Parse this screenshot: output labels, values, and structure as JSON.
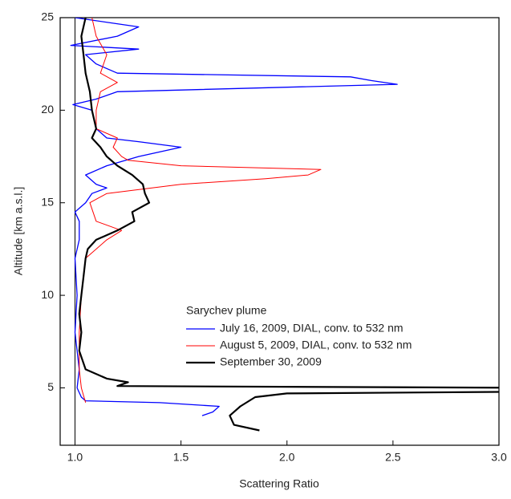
{
  "chart_data": {
    "type": "line",
    "xlabel": "Scattering Ratio",
    "ylabel": "Altitude [km a.s.l.]",
    "xlim": [
      0.93,
      3.0
    ],
    "ylim": [
      1.9,
      25
    ],
    "xticks": [
      {
        "value": 1,
        "label": "1.0"
      },
      1.5,
      {
        "value": 2,
        "label": "2.0"
      },
      2.5,
      {
        "value": 3,
        "label": "3.0"
      }
    ],
    "yticks": [
      5,
      10,
      15,
      20,
      25
    ],
    "vline": 1,
    "legend_title": "Sarychev plume",
    "legend": "lower right",
    "series": [
      {
        "name": "July 16, 2009, DIAL, conv. to 532 nm",
        "color": "#0000ff",
        "linewidth": 1.3,
        "y": [
          3.5,
          3.7,
          4.0,
          4.2,
          4.3,
          4.5,
          5,
          6,
          8,
          10,
          12,
          13,
          14,
          14.5,
          15,
          15.5,
          15.8,
          16,
          16.5,
          17,
          17.5,
          18,
          18.3,
          18.5,
          19,
          20,
          20.3,
          20.6,
          21,
          21.4,
          21.6,
          21.8,
          22,
          22.5,
          23,
          23.3,
          23.5,
          24,
          24.5,
          25
        ],
        "x": [
          1.6,
          1.65,
          1.68,
          1.4,
          1.05,
          1.03,
          1.01,
          1.02,
          1.0,
          1.01,
          1.0,
          1.02,
          1.02,
          1.0,
          1.05,
          1.08,
          1.15,
          1.1,
          1.05,
          1.15,
          1.3,
          1.5,
          1.3,
          1.15,
          1.1,
          1.08,
          0.99,
          1.1,
          1.2,
          2.52,
          2.4,
          2.3,
          1.2,
          1.1,
          1.05,
          1.3,
          0.98,
          1.2,
          1.3,
          1.0
        ]
      },
      {
        "name": "August 5, 2009, DIAL, conv. to 532 nm",
        "color": "#ff0000",
        "linewidth": 1,
        "y": [
          4.2,
          5,
          6,
          8,
          10,
          12,
          13,
          13.5,
          14,
          15,
          15.5,
          16,
          16.3,
          16.5,
          16.8,
          17,
          17.3,
          17.5,
          18,
          18.5,
          19,
          20,
          21,
          21.5,
          22,
          23,
          24,
          25
        ],
        "x": [
          1.05,
          1.03,
          1.02,
          1.02,
          1.03,
          1.05,
          1.15,
          1.22,
          1.1,
          1.07,
          1.15,
          1.5,
          1.9,
          2.1,
          2.16,
          1.5,
          1.25,
          1.22,
          1.18,
          1.2,
          1.1,
          1.1,
          1.12,
          1.2,
          1.12,
          1.15,
          1.1,
          1.08
        ]
      },
      {
        "name": "September 30, 2009",
        "color": "#000000",
        "linewidth": 2.2,
        "y": [
          2.7,
          3.0,
          3.5,
          4.0,
          4.5,
          4.7,
          4.8,
          5.0,
          5.1,
          5.3,
          5.5,
          6,
          7,
          8,
          9,
          10,
          11,
          12,
          12.5,
          13,
          13.5,
          14,
          14.5,
          15,
          15.5,
          16,
          16.5,
          17,
          17.5,
          18,
          18.5,
          19,
          20,
          21,
          22,
          23,
          24,
          25
        ],
        "x": [
          1.87,
          1.75,
          1.73,
          1.78,
          1.85,
          2.0,
          3.2,
          3.2,
          1.2,
          1.25,
          1.15,
          1.05,
          1.02,
          1.03,
          1.02,
          1.03,
          1.04,
          1.05,
          1.06,
          1.1,
          1.2,
          1.28,
          1.27,
          1.35,
          1.33,
          1.32,
          1.27,
          1.2,
          1.15,
          1.12,
          1.08,
          1.1,
          1.08,
          1.07,
          1.05,
          1.04,
          1.03,
          1.05
        ]
      }
    ]
  }
}
